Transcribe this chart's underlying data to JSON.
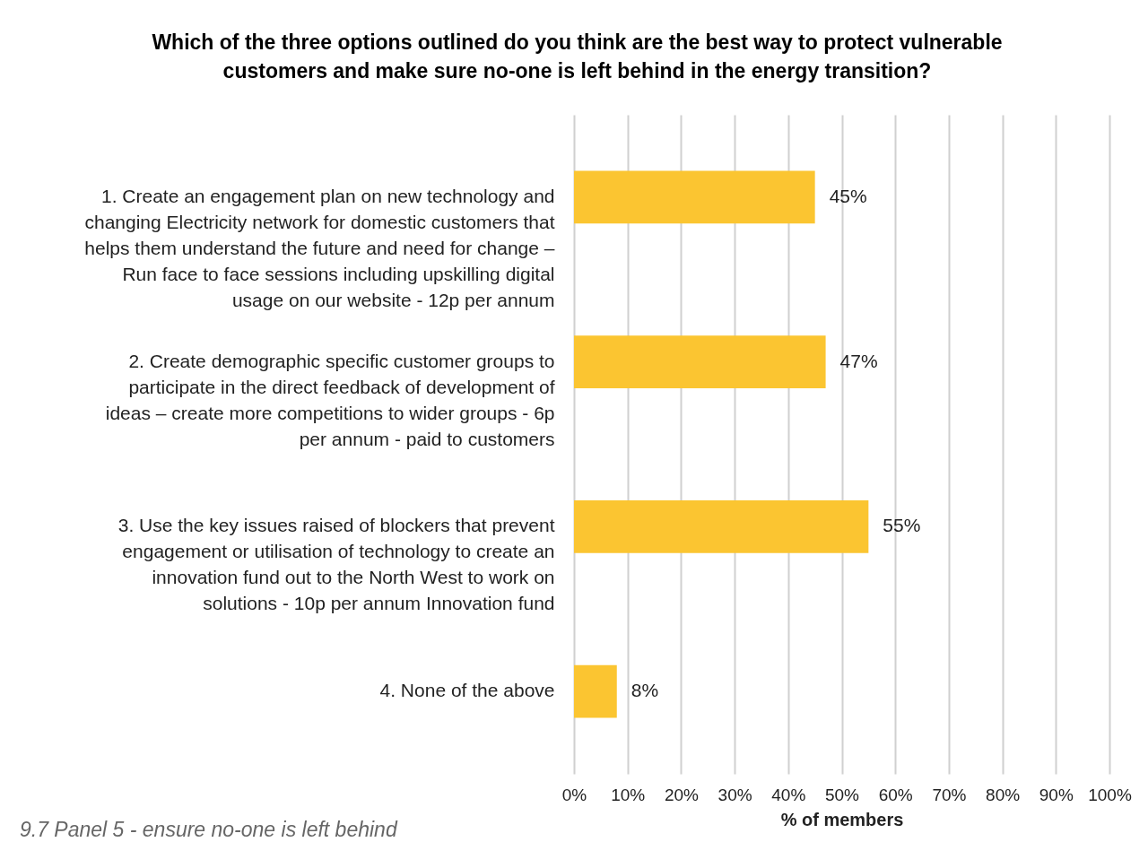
{
  "chart_data": {
    "type": "bar",
    "orientation": "horizontal",
    "title": "Which of the three options outlined do you think are the best way to protect vulnerable\ncustomers and make sure no-one is left behind in the energy transition?",
    "categories": [
      "1. Create an engagement plan on new technology and changing Electricity network for domestic customers that helps them understand the future and need for change – Run face to face sessions including upskilling digital usage on our website - 12p per annum",
      "2. Create demographic specific customer groups to participate in the direct feedback of development of ideas – create more competitions to wider groups - 6p per annum - paid to customers",
      "3. Use the key issues raised of blockers that prevent engagement or utilisation of technology to create an innovation fund out to the North West to work on solutions - 10p per annum Innovation fund",
      "4. None of the above"
    ],
    "values": [
      45,
      47,
      55,
      8
    ],
    "value_labels": [
      "45%",
      "47%",
      "55%",
      "8%"
    ],
    "color": "#fbc531",
    "xlim": [
      0,
      100
    ],
    "xticks": [
      {
        "value": 0,
        "label": "0%"
      },
      {
        "value": 10,
        "label": "10%"
      },
      {
        "value": 20,
        "label": "20%"
      },
      {
        "value": 30,
        "label": "30%"
      },
      {
        "value": 40,
        "label": "40%"
      },
      {
        "value": 50,
        "label": "50%"
      },
      {
        "value": 60,
        "label": "60%"
      },
      {
        "value": 70,
        "label": "70%"
      },
      {
        "value": 80,
        "label": "80%"
      },
      {
        "value": 90,
        "label": "90%"
      },
      {
        "value": 100,
        "label": "100%"
      }
    ],
    "xlabel": "% of members",
    "grid": "x",
    "annotations": [
      "9.7 Panel 5 - ensure no-one is left behind"
    ]
  }
}
